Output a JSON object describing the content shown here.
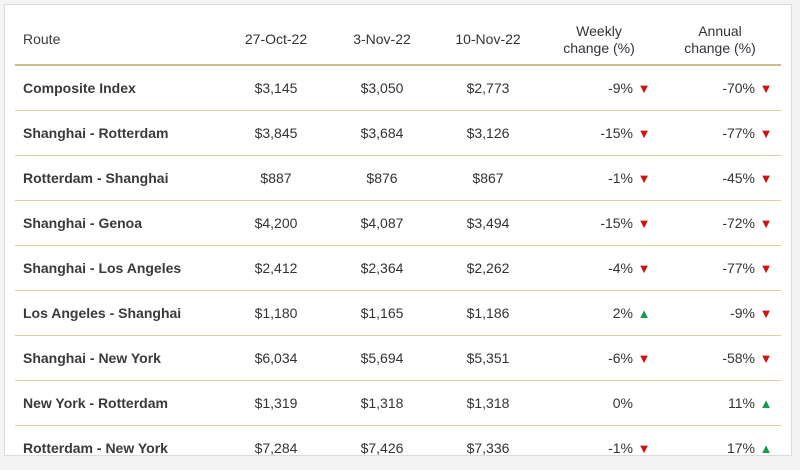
{
  "colors": {
    "down": "#cc1414",
    "up": "#1a9a4a",
    "rule": "#cbbd85"
  },
  "chart_data": {
    "type": "table",
    "columns": [
      "Route",
      "27-Oct-22",
      "3-Nov-22",
      "10-Nov-22",
      "Weekly change (%)",
      "Annual change (%)"
    ],
    "rows": [
      {
        "route": "Composite Index",
        "oct27": "$3,145",
        "nov3": "$3,050",
        "nov10": "$2,773",
        "weekly": "-9%",
        "weekly_dir": "down",
        "annual": "-70%",
        "annual_dir": "down"
      },
      {
        "route": "Shanghai - Rotterdam",
        "oct27": "$3,845",
        "nov3": "$3,684",
        "nov10": "$3,126",
        "weekly": "-15%",
        "weekly_dir": "down",
        "annual": "-77%",
        "annual_dir": "down"
      },
      {
        "route": "Rotterdam - Shanghai",
        "oct27": "$887",
        "nov3": "$876",
        "nov10": "$867",
        "weekly": "-1%",
        "weekly_dir": "down",
        "annual": "-45%",
        "annual_dir": "down"
      },
      {
        "route": "Shanghai - Genoa",
        "oct27": "$4,200",
        "nov3": "$4,087",
        "nov10": "$3,494",
        "weekly": "-15%",
        "weekly_dir": "down",
        "annual": "-72%",
        "annual_dir": "down"
      },
      {
        "route": "Shanghai - Los Angeles",
        "oct27": "$2,412",
        "nov3": "$2,364",
        "nov10": "$2,262",
        "weekly": "-4%",
        "weekly_dir": "down",
        "annual": "-77%",
        "annual_dir": "down"
      },
      {
        "route": "Los Angeles - Shanghai",
        "oct27": "$1,180",
        "nov3": "$1,165",
        "nov10": "$1,186",
        "weekly": "2%",
        "weekly_dir": "up",
        "annual": "-9%",
        "annual_dir": "down"
      },
      {
        "route": "Shanghai - New York",
        "oct27": "$6,034",
        "nov3": "$5,694",
        "nov10": "$5,351",
        "weekly": "-6%",
        "weekly_dir": "down",
        "annual": "-58%",
        "annual_dir": "down"
      },
      {
        "route": "New York - Rotterdam",
        "oct27": "$1,319",
        "nov3": "$1,318",
        "nov10": "$1,318",
        "weekly": "0%",
        "weekly_dir": "none",
        "annual": "11%",
        "annual_dir": "up"
      },
      {
        "route": "Rotterdam - New York",
        "oct27": "$7,284",
        "nov3": "$7,426",
        "nov10": "$7,336",
        "weekly": "-1%",
        "weekly_dir": "down",
        "annual": "17%",
        "annual_dir": "up"
      }
    ]
  },
  "header": {
    "route": "Route",
    "d1": "27-Oct-22",
    "d2": "3-Nov-22",
    "d3": "10-Nov-22",
    "weekly_l1": "Weekly",
    "weekly_l2": "change (%)",
    "annual_l1": "Annual",
    "annual_l2": "change (%)"
  }
}
